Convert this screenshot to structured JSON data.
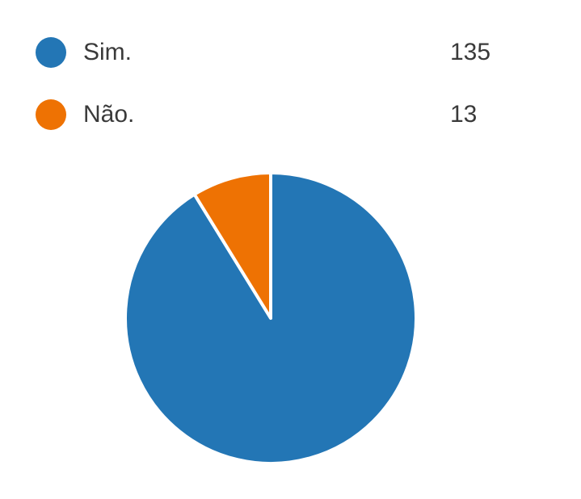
{
  "chart_data": {
    "type": "pie",
    "series": [
      {
        "name": "Sim.",
        "value": 135,
        "color": "#2376b5"
      },
      {
        "name": "Não.",
        "value": 13,
        "color": "#ee7203"
      }
    ],
    "legend_position": "top"
  }
}
